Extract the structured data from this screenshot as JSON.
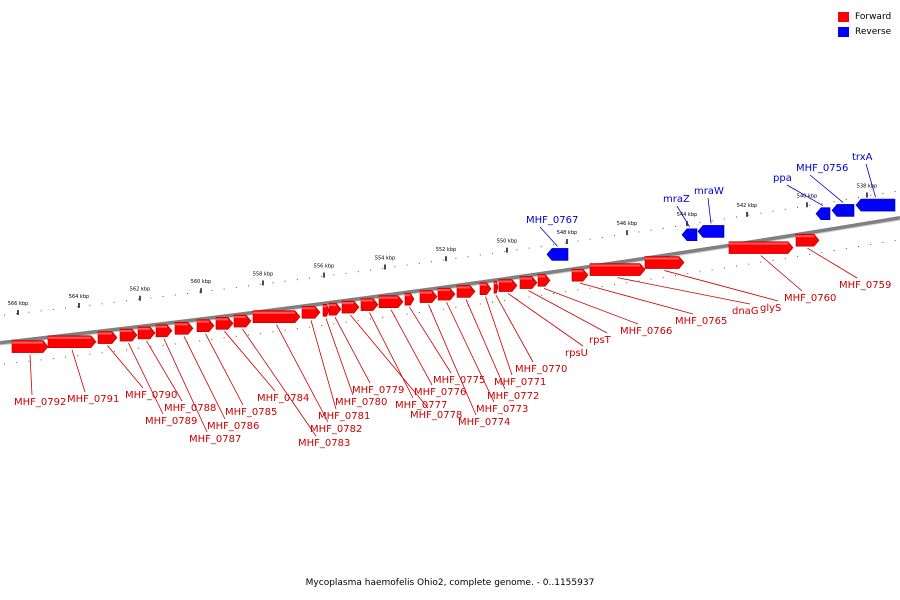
{
  "legend": {
    "forward_label": "Forward",
    "reverse_label": "Reverse",
    "forward_color": "#ff0000",
    "reverse_color": "#0000ff"
  },
  "caption": "Mycoplasma haemofelis Ohio2, complete genome. - 0..1155937",
  "colors": {
    "forward_label": "#cc0000",
    "reverse_label": "#0000cc",
    "backbone": "#808080"
  },
  "scale_labels": [
    "566 kbp",
    "564 kbp",
    "562 kbp",
    "560 kbp",
    "558 kbp",
    "556 kbp",
    "554 kbp",
    "552 kbp",
    "550 kbp",
    "548 kbp",
    "546 kbp",
    "544 kbp",
    "542 kbp",
    "540 kbp",
    "538 kbp"
  ],
  "forward_genes": [
    "MHF_0792",
    "MHF_0791",
    "MHF_0790",
    "MHF_0789",
    "MHF_0788",
    "MHF_0787",
    "MHF_0786",
    "MHF_0785",
    "MHF_0784",
    "MHF_0783",
    "MHF_0782",
    "MHF_0781",
    "MHF_0780",
    "MHF_0779",
    "MHF_0778",
    "MHF_0777",
    "MHF_0776",
    "MHF_0775",
    "MHF_0774",
    "MHF_0773",
    "MHF_0772",
    "MHF_0771",
    "MHF_0770",
    "rpsU",
    "rpsT",
    "MHF_0766",
    "MHF_0765",
    "dnaG",
    "glyS",
    "MHF_0760",
    "MHF_0759"
  ],
  "reverse_genes": [
    "MHF_0767",
    "mraZ",
    "mraW",
    "ppa",
    "MHF_0756",
    "trxA"
  ]
}
